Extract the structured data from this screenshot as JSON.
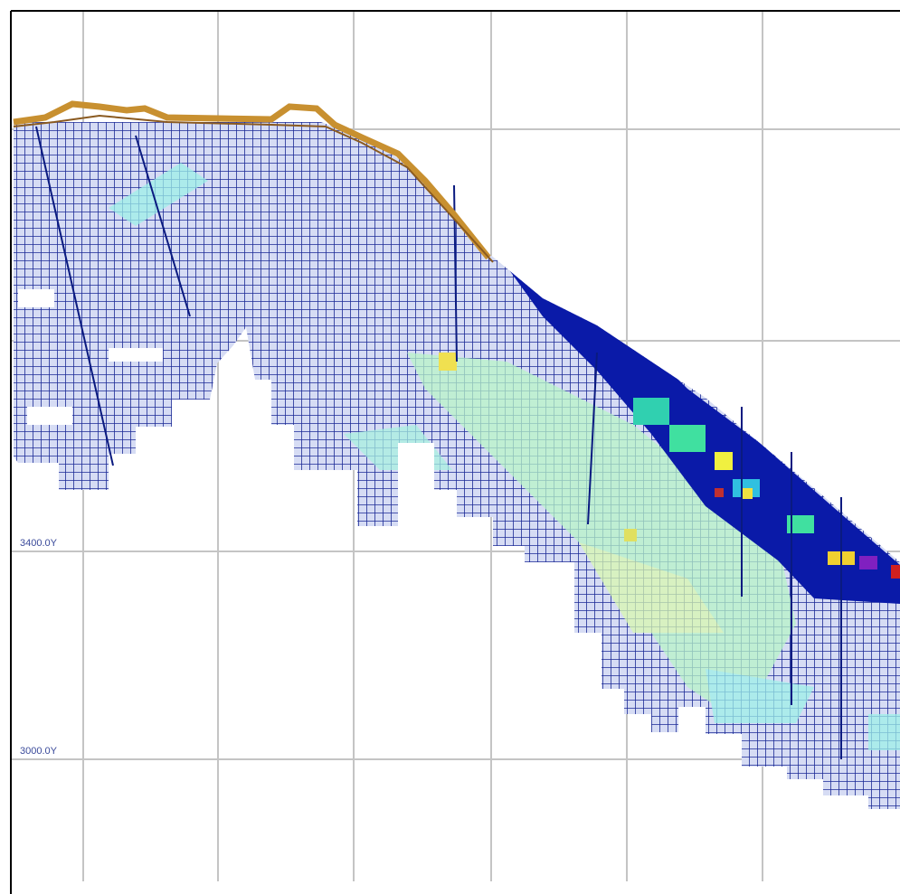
{
  "section_labels": [
    "3400.0Y",
    "3000.0Y"
  ]
}
